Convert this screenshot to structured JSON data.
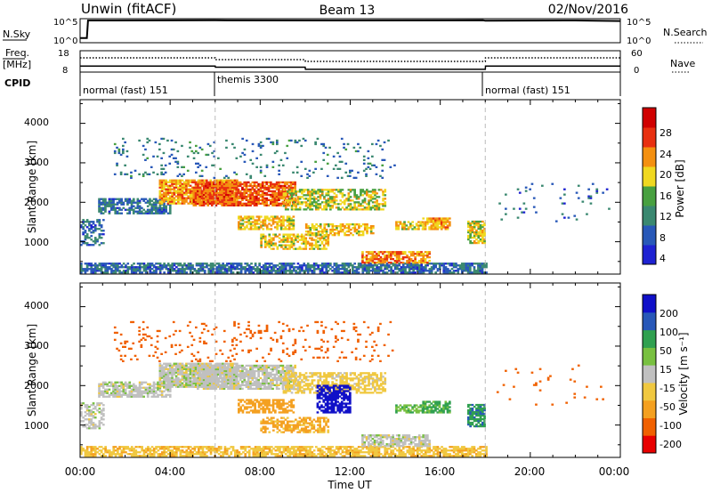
{
  "header": {
    "radar": "Unwin (fitACF)",
    "beam": "Beam 13",
    "date": "02/Nov/2016"
  },
  "side_labels": {
    "nsky": "N.Sky",
    "nsky_ticks": [
      "10^5",
      "10^0"
    ],
    "nsearch": "N.Search",
    "nsearch_ticks": [
      "10^5",
      "10^0"
    ],
    "freq": "Freq.",
    "freq_unit": "[MHz]",
    "freq_ticks": [
      "18",
      "8"
    ],
    "nave": "Nave",
    "nave_ticks": [
      "60",
      "0"
    ],
    "cpid": "CPID"
  },
  "cpid_segments": [
    {
      "label": "normal (fast) 151",
      "start_h": 0,
      "end_h": 6
    },
    {
      "label": "themis 3300",
      "start_h": 6,
      "end_h": 18
    },
    {
      "label": "normal (fast) 151",
      "start_h": 18,
      "end_h": 24
    }
  ],
  "chart_data": [
    {
      "type": "line",
      "panel": "N.Sky / N.Search",
      "x": [
        0.0,
        0.3,
        0.35,
        6.0,
        11.5,
        17.9,
        18.0,
        22.0,
        24.0
      ],
      "series": [
        {
          "name": "N.Sky",
          "values": [
            1.0,
            1.0,
            4.8,
            4.85,
            4.8,
            4.85,
            4.75,
            4.8,
            4.7
          ]
        }
      ],
      "ylim": [
        0,
        5
      ]
    },
    {
      "type": "line",
      "panel": "Freq / Nave",
      "x": [
        0,
        6,
        6.01,
        10,
        10.01,
        18,
        18.01,
        24
      ],
      "series": [
        {
          "name": "Freq.",
          "values": [
            10.8,
            10.8,
            10.3,
            10.3,
            9.3,
            9.3,
            10.8,
            10.8
          ]
        },
        {
          "name": "Nave",
          "values": [
            40,
            40,
            35,
            35,
            30,
            30,
            40,
            40
          ]
        }
      ],
      "ylim_freq": [
        8,
        18
      ],
      "ylim_nave": [
        0,
        60
      ]
    },
    {
      "type": "heatmap",
      "panel": "Power",
      "ylabel": "Slant Range [km]",
      "xlabel": "Time UT",
      "xticks": [
        "00:00",
        "04:00",
        "08:00",
        "12:00",
        "16:00",
        "20:00",
        "00:00"
      ],
      "yticks": [
        "1000",
        "2000",
        "3000",
        "4000"
      ],
      "ylim": [
        180,
        4600
      ],
      "xlim_hours": [
        0,
        24
      ],
      "colorbar_label": "Power [dB]",
      "colorbar_ticks": [
        "4",
        "8",
        "12",
        "16",
        "20",
        "24",
        "28"
      ],
      "colorbar_range": [
        0,
        30
      ],
      "colors": [
        "#1e22d2",
        "#2858b8",
        "#3a8870",
        "#48a040",
        "#f0d820",
        "#f49010",
        "#e83010",
        "#d00000"
      ],
      "regions": [
        {
          "t0": 0.0,
          "t1": 18.0,
          "r0": 200,
          "r1": 450,
          "value": 7,
          "density": 0.75
        },
        {
          "t0": 0.0,
          "t1": 1.0,
          "r0": 900,
          "r1": 1550,
          "value": 7,
          "density": 0.5
        },
        {
          "t0": 0.8,
          "t1": 4.0,
          "r0": 1700,
          "r1": 2100,
          "value": 7,
          "density": 0.7
        },
        {
          "t0": 3.5,
          "t1": 7.0,
          "r0": 1950,
          "r1": 2550,
          "value": 20,
          "density": 0.85
        },
        {
          "t0": 5.0,
          "t1": 9.5,
          "r0": 1900,
          "r1": 2500,
          "value": 23,
          "density": 0.8
        },
        {
          "t0": 9.0,
          "t1": 13.5,
          "r0": 1800,
          "r1": 2300,
          "value": 16,
          "density": 0.6
        },
        {
          "t0": 7.0,
          "t1": 9.5,
          "r0": 1300,
          "r1": 1650,
          "value": 18,
          "density": 0.65
        },
        {
          "t0": 8.0,
          "t1": 11.0,
          "r0": 800,
          "r1": 1200,
          "value": 18,
          "density": 0.6
        },
        {
          "t0": 10.0,
          "t1": 13.0,
          "r0": 1150,
          "r1": 1450,
          "value": 18,
          "density": 0.6
        },
        {
          "t0": 12.5,
          "t1": 15.5,
          "r0": 450,
          "r1": 750,
          "value": 21,
          "density": 0.75
        },
        {
          "t0": 15.2,
          "t1": 16.4,
          "r0": 1300,
          "r1": 1600,
          "value": 19,
          "density": 0.8
        },
        {
          "t0": 14.0,
          "t1": 15.2,
          "r0": 1300,
          "r1": 1500,
          "value": 17,
          "density": 0.6
        },
        {
          "t0": 17.2,
          "t1": 18.0,
          "r0": 950,
          "r1": 1500,
          "value": 17,
          "density": 0.8
        },
        {
          "t0": 1.5,
          "t1": 14.0,
          "r0": 2600,
          "r1": 3600,
          "value": 8,
          "density": 0.08
        },
        {
          "t0": 18.5,
          "t1": 23.5,
          "r0": 1500,
          "r1": 2500,
          "value": 7,
          "density": 0.03
        }
      ]
    },
    {
      "type": "heatmap",
      "panel": "Velocity",
      "ylabel": "Slant Range [km]",
      "xlabel": "Time UT",
      "xticks": [
        "00:00",
        "04:00",
        "08:00",
        "12:00",
        "16:00",
        "20:00",
        "00:00"
      ],
      "yticks": [
        "1000",
        "2000",
        "3000",
        "4000"
      ],
      "ylim": [
        180,
        4600
      ],
      "xlim_hours": [
        0,
        24
      ],
      "colorbar_label": "Velocity [m s⁻¹]",
      "colorbar_ticks": [
        "200",
        "100",
        "50",
        "15",
        "-15",
        "-50",
        "-100",
        "-200"
      ],
      "colorbar_range": [
        -250,
        250
      ],
      "colors": [
        "#e80000",
        "#f06000",
        "#f4a020",
        "#f0c840",
        "#c0c0c0",
        "#78c040",
        "#30a050",
        "#2858b8",
        "#1010c8"
      ],
      "regions": [
        {
          "t0": 0.0,
          "t1": 18.0,
          "r0": 200,
          "r1": 450,
          "value": -40,
          "density": 0.7
        },
        {
          "t0": 0.0,
          "t1": 1.0,
          "r0": 900,
          "r1": 1550,
          "value": 0,
          "density": 0.5
        },
        {
          "t0": 0.8,
          "t1": 4.0,
          "r0": 1700,
          "r1": 2100,
          "value": 0,
          "density": 0.7
        },
        {
          "t0": 3.5,
          "t1": 7.0,
          "r0": 1950,
          "r1": 2550,
          "value": 0,
          "density": 0.85
        },
        {
          "t0": 5.0,
          "t1": 9.5,
          "r0": 1900,
          "r1": 2500,
          "value": 0,
          "density": 0.8
        },
        {
          "t0": 9.0,
          "t1": 13.5,
          "r0": 1800,
          "r1": 2300,
          "value": -30,
          "density": 0.6
        },
        {
          "t0": 7.0,
          "t1": 9.5,
          "r0": 1300,
          "r1": 1650,
          "value": -70,
          "density": 0.65
        },
        {
          "t0": 8.0,
          "t1": 11.0,
          "r0": 800,
          "r1": 1200,
          "value": -60,
          "density": 0.6
        },
        {
          "t0": 10.5,
          "t1": 12.0,
          "r0": 1300,
          "r1": 2000,
          "value": 220,
          "density": 0.7
        },
        {
          "t0": 12.5,
          "t1": 15.5,
          "r0": 450,
          "r1": 750,
          "value": 0,
          "density": 0.75
        },
        {
          "t0": 15.2,
          "t1": 16.4,
          "r0": 1300,
          "r1": 1600,
          "value": 60,
          "density": 0.8
        },
        {
          "t0": 14.0,
          "t1": 15.2,
          "r0": 1300,
          "r1": 1500,
          "value": 40,
          "density": 0.6
        },
        {
          "t0": 17.2,
          "t1": 18.0,
          "r0": 950,
          "r1": 1500,
          "value": 90,
          "density": 0.8
        },
        {
          "t0": 1.5,
          "t1": 14.0,
          "r0": 2600,
          "r1": 3600,
          "value": -120,
          "density": 0.08
        },
        {
          "t0": 18.5,
          "t1": 23.5,
          "r0": 1500,
          "r1": 2500,
          "value": -120,
          "density": 0.03
        }
      ]
    }
  ]
}
